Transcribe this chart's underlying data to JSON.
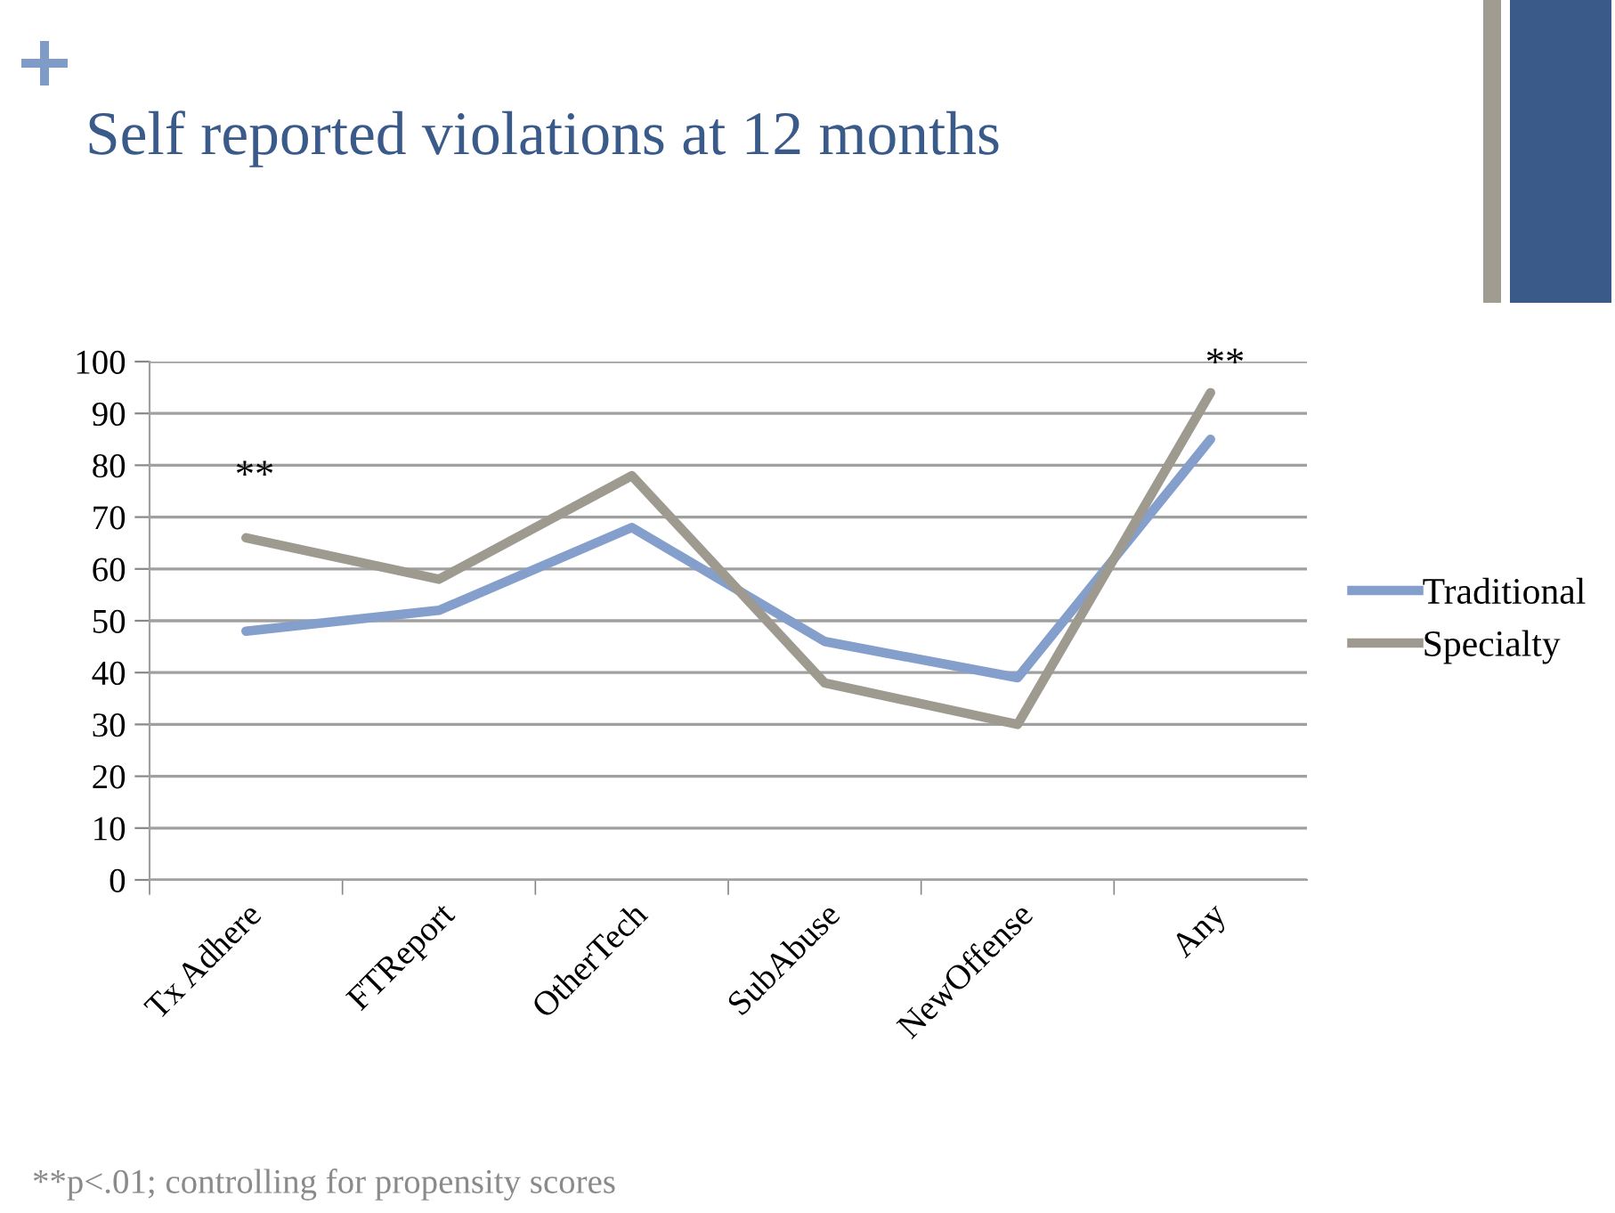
{
  "chart_data": {
    "type": "line",
    "title": "Self reported violations at 12 months",
    "categories": [
      "Tx Adhere",
      "FTReport",
      "OtherTech",
      "SubAbuse",
      "NewOffense",
      "Any"
    ],
    "series": [
      {
        "name": "Traditional",
        "color": "#849fcb",
        "values": [
          48,
          52,
          68,
          46,
          39,
          85
        ]
      },
      {
        "name": "Specialty",
        "color": "#9e9a90",
        "values": [
          66,
          58,
          78,
          38,
          30,
          94
        ]
      }
    ],
    "ylim": [
      0,
      100
    ],
    "yticks": [
      0,
      10,
      20,
      30,
      40,
      50,
      60,
      70,
      80,
      90,
      100
    ],
    "grid": "y",
    "legend": "right",
    "marker": "none",
    "line_style": "solid",
    "annotations": [
      "**",
      "**",
      "**p<.01; controlling for propensity scores"
    ]
  }
}
